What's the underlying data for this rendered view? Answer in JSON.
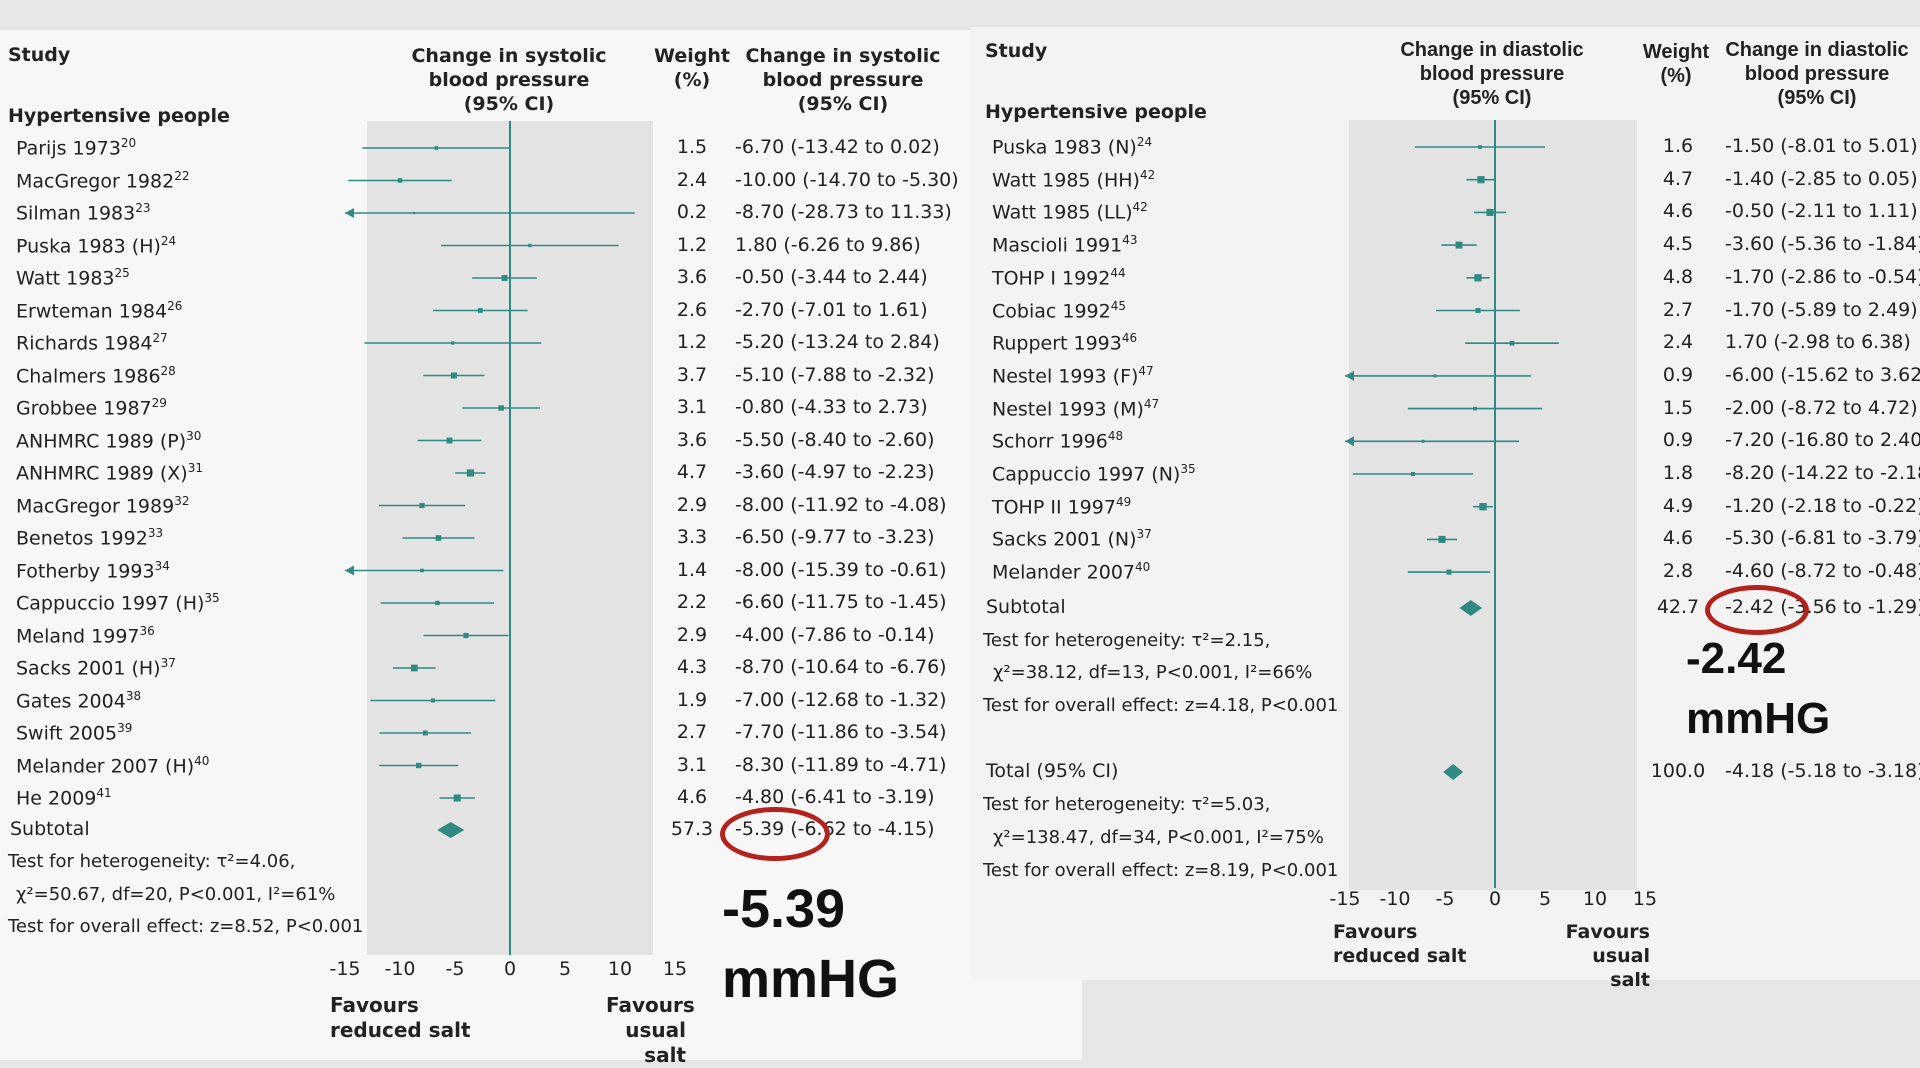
{
  "chart_data": [
    {
      "type": "forest",
      "headers": {
        "study": "Study",
        "effect": [
          "Change in systolic",
          "blood pressure",
          "(95% CI)"
        ],
        "weight": [
          "Weight",
          "(%)"
        ],
        "ci": [
          "Change in systolic",
          "blood pressure",
          "(95% CI)"
        ]
      },
      "group": "Hypertensive people",
      "xlim": [
        -15,
        15
      ],
      "ticks": [
        "-15",
        "-10",
        "-5",
        "0",
        "5",
        "10",
        "15"
      ],
      "favours_left": [
        "Favours",
        "reduced salt"
      ],
      "favours_right": [
        "Favours",
        "usual salt"
      ],
      "studies": [
        {
          "name": "Parijs 1973",
          "ref": "20",
          "weight": "1.5",
          "est": -6.7,
          "lo": -13.42,
          "hi": 0.02,
          "ci_text": "-6.70 (-13.42 to 0.02)"
        },
        {
          "name": "MacGregor 1982",
          "ref": "22",
          "weight": "2.4",
          "est": -10.0,
          "lo": -14.7,
          "hi": -5.3,
          "ci_text": "-10.00 (-14.70 to -5.30)"
        },
        {
          "name": "Silman 1983",
          "ref": "23",
          "weight": "0.2",
          "est": -8.7,
          "lo": -28.73,
          "hi": 11.33,
          "ci_text": "-8.70 (-28.73 to 11.33)"
        },
        {
          "name": "Puska 1983 (H)",
          "ref": "24",
          "weight": "1.2",
          "est": 1.8,
          "lo": -6.26,
          "hi": 9.86,
          "ci_text": "1.80 (-6.26 to 9.86)"
        },
        {
          "name": "Watt 1983",
          "ref": "25",
          "weight": "3.6",
          "est": -0.5,
          "lo": -3.44,
          "hi": 2.44,
          "ci_text": "-0.50 (-3.44 to 2.44)"
        },
        {
          "name": "Erwteman 1984",
          "ref": "26",
          "weight": "2.6",
          "est": -2.7,
          "lo": -7.01,
          "hi": 1.61,
          "ci_text": "-2.70 (-7.01 to 1.61)"
        },
        {
          "name": "Richards 1984",
          "ref": "27",
          "weight": "1.2",
          "est": -5.2,
          "lo": -13.24,
          "hi": 2.84,
          "ci_text": "-5.20 (-13.24 to 2.84)"
        },
        {
          "name": "Chalmers 1986",
          "ref": "28",
          "weight": "3.7",
          "est": -5.1,
          "lo": -7.88,
          "hi": -2.32,
          "ci_text": "-5.10 (-7.88 to -2.32)"
        },
        {
          "name": "Grobbee 1987",
          "ref": "29",
          "weight": "3.1",
          "est": -0.8,
          "lo": -4.33,
          "hi": 2.73,
          "ci_text": "-0.80 (-4.33 to 2.73)"
        },
        {
          "name": "ANHMRC 1989 (P)",
          "ref": "30",
          "weight": "3.6",
          "est": -5.5,
          "lo": -8.4,
          "hi": -2.6,
          "ci_text": "-5.50 (-8.40 to -2.60)"
        },
        {
          "name": "ANHMRC 1989 (X)",
          "ref": "31",
          "weight": "4.7",
          "est": -3.6,
          "lo": -4.97,
          "hi": -2.23,
          "ci_text": "-3.60 (-4.97 to -2.23)"
        },
        {
          "name": "MacGregor 1989",
          "ref": "32",
          "weight": "2.9",
          "est": -8.0,
          "lo": -11.92,
          "hi": -4.08,
          "ci_text": "-8.00 (-11.92 to -4.08)"
        },
        {
          "name": "Benetos 1992",
          "ref": "33",
          "weight": "3.3",
          "est": -6.5,
          "lo": -9.77,
          "hi": -3.23,
          "ci_text": "-6.50 (-9.77 to -3.23)"
        },
        {
          "name": "Fotherby 1993",
          "ref": "34",
          "weight": "1.4",
          "est": -8.0,
          "lo": -15.39,
          "hi": -0.61,
          "ci_text": "-8.00 (-15.39 to -0.61)"
        },
        {
          "name": "Cappuccio 1997 (H)",
          "ref": "35",
          "weight": "2.2",
          "est": -6.6,
          "lo": -11.75,
          "hi": -1.45,
          "ci_text": "-6.60 (-11.75 to -1.45)"
        },
        {
          "name": "Meland 1997",
          "ref": "36",
          "weight": "2.9",
          "est": -4.0,
          "lo": -7.86,
          "hi": -0.14,
          "ci_text": "-4.00 (-7.86 to -0.14)"
        },
        {
          "name": "Sacks 2001 (H)",
          "ref": "37",
          "weight": "4.3",
          "est": -8.7,
          "lo": -10.64,
          "hi": -6.76,
          "ci_text": "-8.70 (-10.64 to -6.76)"
        },
        {
          "name": "Gates 2004",
          "ref": "38",
          "weight": "1.9",
          "est": -7.0,
          "lo": -12.68,
          "hi": -1.32,
          "ci_text": "-7.00 (-12.68 to -1.32)"
        },
        {
          "name": "Swift 2005",
          "ref": "39",
          "weight": "2.7",
          "est": -7.7,
          "lo": -11.86,
          "hi": -3.54,
          "ci_text": "-7.70 (-11.86 to -3.54)"
        },
        {
          "name": "Melander 2007 (H)",
          "ref": "40",
          "weight": "3.1",
          "est": -8.3,
          "lo": -11.89,
          "hi": -4.71,
          "ci_text": "-8.30 (-11.89 to -4.71)"
        },
        {
          "name": "He 2009",
          "ref": "41",
          "weight": "4.6",
          "est": -4.8,
          "lo": -6.41,
          "hi": -3.19,
          "ci_text": "-4.80 (-6.41 to -3.19)"
        }
      ],
      "subtotal": {
        "label": "Subtotal",
        "weight": "57.3",
        "est": -5.39,
        "lo": -6.62,
        "hi": -4.15,
        "ci_text": "-5.39 (-6.62 to -4.15)"
      },
      "heterogeneity": [
        "Test for heterogeneity: τ²=4.06,",
        "χ²=50.67, df=20, P<0.001, I²=61%"
      ],
      "overall_effect": "Test for overall effect: z=8.52, P<0.001",
      "annotation": [
        "-5.39",
        "mmHG"
      ]
    },
    {
      "type": "forest",
      "headers": {
        "study": "Study",
        "effect": [
          "Change in diastolic",
          "blood pressure",
          "(95% CI)"
        ],
        "weight": [
          "Weight",
          "(%)"
        ],
        "ci": [
          "Change in diastolic",
          "blood pressure",
          "(95% CI)"
        ]
      },
      "group": "Hypertensive people",
      "xlim": [
        -15,
        15
      ],
      "ticks": [
        "-15",
        "-10",
        "-5",
        "0",
        "5",
        "10",
        "15"
      ],
      "favours_left": [
        "Favours",
        "reduced salt"
      ],
      "favours_right": [
        "Favours",
        "usual salt"
      ],
      "studies": [
        {
          "name": "Puska 1983 (N)",
          "ref": "24",
          "weight": "1.6",
          "est": -1.5,
          "lo": -8.01,
          "hi": 5.01,
          "ci_text": "-1.50 (-8.01 to 5.01)"
        },
        {
          "name": "Watt 1985 (HH)",
          "ref": "42",
          "weight": "4.7",
          "est": -1.4,
          "lo": -2.85,
          "hi": 0.05,
          "ci_text": "-1.40 (-2.85 to 0.05)"
        },
        {
          "name": "Watt 1985 (LL)",
          "ref": "42",
          "weight": "4.6",
          "est": -0.5,
          "lo": -2.11,
          "hi": 1.11,
          "ci_text": "-0.50 (-2.11 to 1.11)"
        },
        {
          "name": "Mascioli 1991",
          "ref": "43",
          "weight": "4.5",
          "est": -3.6,
          "lo": -5.36,
          "hi": -1.84,
          "ci_text": "-3.60 (-5.36 to -1.84)"
        },
        {
          "name": "TOHP I 1992",
          "ref": "44",
          "weight": "4.8",
          "est": -1.7,
          "lo": -2.86,
          "hi": -0.54,
          "ci_text": "-1.70 (-2.86 to -0.54)"
        },
        {
          "name": "Cobiac 1992",
          "ref": "45",
          "weight": "2.7",
          "est": -1.7,
          "lo": -5.89,
          "hi": 2.49,
          "ci_text": "-1.70 (-5.89 to 2.49)"
        },
        {
          "name": "Ruppert 1993",
          "ref": "46",
          "weight": "2.4",
          "est": 1.7,
          "lo": -2.98,
          "hi": 6.38,
          "ci_text": "1.70 (-2.98 to 6.38)"
        },
        {
          "name": "Nestel 1993 (F)",
          "ref": "47",
          "weight": "0.9",
          "est": -6.0,
          "lo": -15.62,
          "hi": 3.62,
          "ci_text": "-6.00 (-15.62 to 3.62)"
        },
        {
          "name": "Nestel 1993 (M)",
          "ref": "47",
          "weight": "1.5",
          "est": -2.0,
          "lo": -8.72,
          "hi": 4.72,
          "ci_text": "-2.00 (-8.72 to 4.72)"
        },
        {
          "name": "Schorr 1996",
          "ref": "48",
          "weight": "0.9",
          "est": -7.2,
          "lo": -16.8,
          "hi": 2.4,
          "ci_text": "-7.20 (-16.80 to 2.40)"
        },
        {
          "name": "Cappuccio 1997 (N)",
          "ref": "35",
          "weight": "1.8",
          "est": -8.2,
          "lo": -14.22,
          "hi": -2.18,
          "ci_text": "-8.20 (-14.22 to -2.18)"
        },
        {
          "name": "TOHP II 1997",
          "ref": "49",
          "weight": "4.9",
          "est": -1.2,
          "lo": -2.18,
          "hi": -0.22,
          "ci_text": "-1.20 (-2.18 to -0.22)"
        },
        {
          "name": "Sacks 2001 (N)",
          "ref": "37",
          "weight": "4.6",
          "est": -5.3,
          "lo": -6.81,
          "hi": -3.79,
          "ci_text": "-5.30 (-6.81 to -3.79)"
        },
        {
          "name": "Melander 2007",
          "ref": "40",
          "weight": "2.8",
          "est": -4.6,
          "lo": -8.72,
          "hi": -0.48,
          "ci_text": "-4.60 (-8.72 to -0.48)"
        }
      ],
      "subtotal": {
        "label": "Subtotal",
        "weight": "42.7",
        "est": -2.42,
        "lo": -3.56,
        "hi": -1.29,
        "ci_text": "-2.42 (-3.56 to -1.29)"
      },
      "heterogeneity": [
        "Test for heterogeneity: τ²=2.15,",
        "χ²=38.12, df=13, P<0.001, I²=66%"
      ],
      "overall_effect": "Test for overall effect: z=4.18, P<0.001",
      "total": {
        "label": "Total (95% CI)",
        "weight": "100.0",
        "est": -4.18,
        "lo": -5.18,
        "hi": -3.18,
        "ci_text": "-4.18 (-5.18 to -3.18)"
      },
      "total_heterogeneity": [
        "Test for heterogeneity: τ²=5.03,",
        "χ²=138.47, df=34, P<0.001, I²=75%"
      ],
      "total_overall_effect": "Test for overall effect: z=8.19, P<0.001",
      "annotation": [
        "-2.42",
        "mmHG"
      ]
    }
  ],
  "colors": {
    "marker": "#2e8a83",
    "circle": "#b3231e",
    "plot_bg": "#e3e3e3"
  }
}
